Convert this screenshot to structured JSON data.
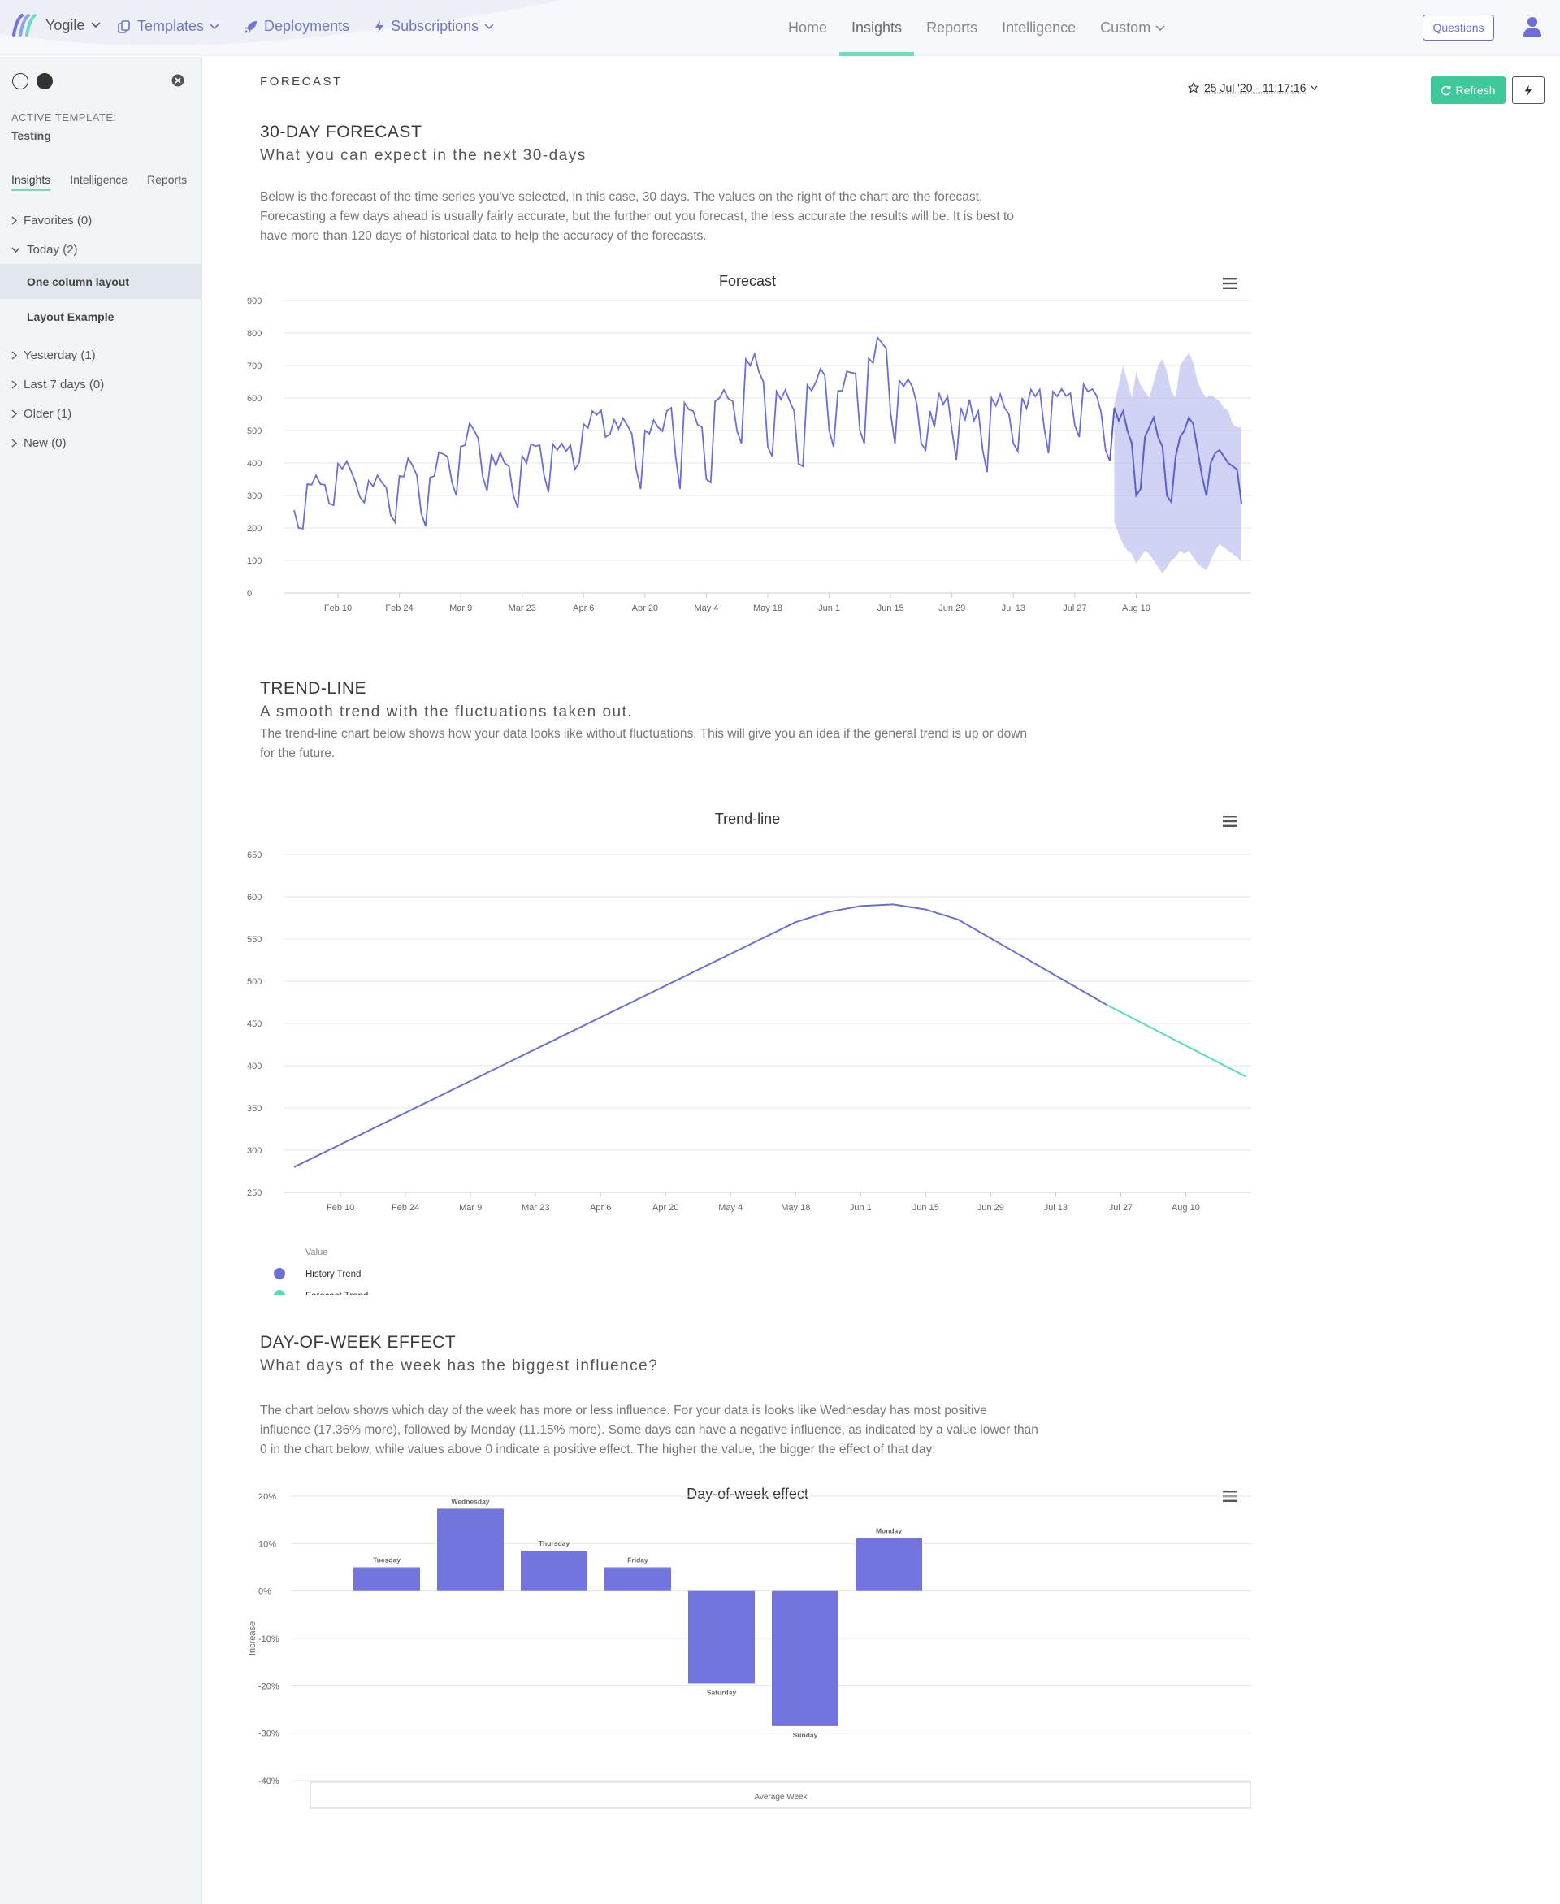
{
  "app": {
    "brand": "Yogile",
    "nav_left": [
      {
        "label": "Templates",
        "icon": "templates-icon"
      },
      {
        "label": "Deployments",
        "icon": "rocket-icon"
      },
      {
        "label": "Subscriptions",
        "icon": "bolt-icon"
      }
    ],
    "nav_center": [
      {
        "label": "Home",
        "active": false
      },
      {
        "label": "Insights",
        "active": true
      },
      {
        "label": "Reports",
        "active": false
      },
      {
        "label": "Intelligence",
        "active": false
      },
      {
        "label": "Custom",
        "active": false
      }
    ],
    "questions_label": "Questions",
    "accent": "#6fdcc0",
    "primary": "#6b6ed6"
  },
  "sidebar": {
    "active_template_label": "ACTIVE TEMPLATE:",
    "active_template_value": "Testing",
    "tabs": [
      "Insights",
      "Intelligence",
      "Reports"
    ],
    "tree": [
      {
        "label": "Favorites (0)",
        "expanded": false,
        "children": []
      },
      {
        "label": "Today (2)",
        "expanded": true,
        "children": [
          {
            "label": "One column layout",
            "selected": true
          },
          {
            "label": "Layout Example",
            "selected": false
          }
        ]
      },
      {
        "label": "Yesterday (1)",
        "expanded": false,
        "children": []
      },
      {
        "label": "Last 7 days (0)",
        "expanded": false,
        "children": []
      },
      {
        "label": "Older (1)",
        "expanded": false,
        "children": []
      },
      {
        "label": "New (0)",
        "expanded": false,
        "children": []
      }
    ]
  },
  "page": {
    "crumb": "FORECAST",
    "date": "25 Jul '20 - 11:17:16",
    "refresh_label": "Refresh"
  },
  "sections": {
    "forecast": {
      "title": "30-DAY FORECAST",
      "subtitle": "What you can expect in the next 30-days",
      "desc_lines": [
        "Below is the forecast of the time series you've selected, in this case, 30 days. The values on the right of the chart are the forecast.",
        "Forecasting a few days ahead is usually fairly accurate, but the further out you forecast, the less accurate the results will be. It is best to",
        "have more than 120 days of historical data to help the accuracy of the forecasts."
      ]
    },
    "trend": {
      "title": "TREND-LINE",
      "subtitle": "A smooth trend with the fluctuations taken out.",
      "desc_lines": [
        "The trend-line chart below shows how your data looks like without fluctuations. This will give you an idea if the general trend is up or down",
        "for the future."
      ]
    },
    "dow": {
      "title": "DAY-OF-WEEK EFFECT",
      "subtitle": "What days of the week has the biggest influence?",
      "desc_lines": [
        "The chart below shows which day of the week has more or less influence. For your data is looks like Wednesday has most positive",
        "influence (17.36% more), followed by Monday (11.15% more). Some days can have a negative influence, as indicated by a value lower than",
        "0 in the chart below, while values above 0 indicate a positive effect. The higher the value, the bigger the effect of that day:"
      ]
    }
  },
  "chart_data": [
    {
      "type": "line",
      "title": "Forecast",
      "x_ticks": [
        "Feb 10",
        "Feb 24",
        "Mar 9",
        "Mar 23",
        "Apr 6",
        "Apr 20",
        "May 4",
        "May 18",
        "Jun 1",
        "Jun 15",
        "Jun 29",
        "Jul 13",
        "Jul 27",
        "Aug 10"
      ],
      "y_ticks": [
        "900",
        "800",
        "700",
        "600",
        "500",
        "400",
        "300",
        "200",
        "100",
        "0"
      ],
      "ylim": [
        0,
        900
      ],
      "x_start": "2020-01-31",
      "series": [
        {
          "values": [
            255,
            200,
            198,
            335,
            333,
            362,
            335,
            333,
            275,
            270,
            398,
            382,
            405,
            375,
            340,
            295,
            278,
            345,
            328,
            362,
            340,
            325,
            240,
            218,
            360,
            358,
            415,
            392,
            362,
            245,
            205,
            355,
            360,
            433,
            428,
            420,
            340,
            300,
            450,
            455,
            522,
            502,
            475,
            358,
            315,
            428,
            392,
            432,
            400,
            390,
            300,
            262,
            422,
            400,
            458,
            452,
            455,
            362,
            310,
            458,
            440,
            460,
            436,
            455,
            380,
            402,
            520,
            508,
            560,
            548,
            562,
            480,
            488,
            533,
            505,
            538,
            515,
            490,
            380,
            320,
            500,
            490,
            532,
            510,
            498,
            560,
            570,
            420,
            320,
            585,
            565,
            560,
            518,
            510,
            350,
            340,
            590,
            600,
            625,
            598,
            590,
            498,
            460,
            720,
            700,
            735,
            680,
            650,
            450,
            420,
            620,
            596,
            625,
            590,
            560,
            398,
            390,
            640,
            622,
            650,
            690,
            670,
            500,
            450,
            622,
            622,
            682,
            678,
            676,
            500,
            460,
            722,
            708,
            786,
            770,
            752,
            555,
            460,
            654,
            636,
            658,
            634,
            580,
            460,
            440,
            560,
            510,
            616,
            580,
            605,
            500,
            410,
            570,
            534,
            595,
            530,
            560,
            440,
            372,
            600,
            576,
            612,
            570,
            550,
            460,
            436,
            600,
            568,
            626,
            605,
            626,
            510,
            430,
            620,
            605,
            628,
            606,
            615,
            516,
            480,
            642,
            620,
            628,
            606,
            555,
            440,
            406
          ]
        },
        {
          "values": [
            570,
            530,
            560,
            500,
            460,
            300,
            320,
            480,
            510,
            540,
            480,
            450,
            300,
            280,
            420,
            480,
            500,
            540,
            520,
            440,
            360,
            300,
            400,
            430,
            440,
            420,
            400,
            390,
            380,
            275
          ]
        }
      ],
      "forecast_band": {
        "upper": [
          580,
          640,
          700,
          650,
          600,
          680,
          640,
          620,
          600,
          650,
          700,
          720,
          680,
          620,
          600,
          700,
          720,
          740,
          710,
          650,
          620,
          600,
          610,
          600,
          590,
          570,
          560,
          520,
          510,
          510
        ],
        "lower": [
          220,
          180,
          150,
          130,
          120,
          90,
          110,
          130,
          120,
          100,
          80,
          60,
          80,
          100,
          110,
          130,
          120,
          130,
          110,
          90,
          80,
          70,
          100,
          130,
          150,
          140,
          130,
          120,
          110,
          95
        ]
      }
    },
    {
      "type": "line",
      "title": "Trend-line",
      "x_ticks": [
        "Feb 10",
        "Feb 24",
        "Mar 9",
        "Mar 23",
        "Apr 6",
        "Apr 20",
        "May 4",
        "May 18",
        "Jun 1",
        "Jun 15",
        "Jun 29",
        "Jul 13",
        "Jul 27",
        "Aug 10"
      ],
      "y_ticks": [
        "650",
        "600",
        "550",
        "500",
        "450",
        "400",
        "350",
        "300",
        "250"
      ],
      "ylim": [
        250,
        650
      ],
      "legend_title": "Value",
      "series": [
        {
          "name": "History Trend",
          "color": "#6b6ed6",
          "points": [
            [
              "2020-01-31",
              280
            ],
            [
              "2020-05-18",
              570
            ],
            [
              "2020-05-25",
              582
            ],
            [
              "2020-06-01",
              589
            ],
            [
              "2020-06-08",
              591
            ],
            [
              "2020-06-15",
              585
            ],
            [
              "2020-06-22",
              573
            ],
            [
              "2020-07-24",
              472
            ]
          ]
        },
        {
          "name": "Forecast Trend",
          "color": "#57dcc2",
          "points": [
            [
              "2020-07-24",
              472
            ],
            [
              "2020-08-23",
              387
            ]
          ]
        }
      ]
    },
    {
      "type": "bar",
      "title": "Day-of-week effect",
      "ylabel": "Increase",
      "xlabel": "Average Week",
      "y_ticks": [
        "20%",
        "10%",
        "0%",
        "-10%",
        "-20%",
        "-30%",
        "-40%"
      ],
      "ylim": [
        -40,
        20
      ],
      "categories": [
        "Tuesday",
        "Wednesday",
        "Thursday",
        "Friday",
        "Saturday",
        "Sunday",
        "Monday"
      ],
      "values": [
        5,
        17.36,
        8.5,
        5,
        -19.5,
        -28.5,
        11.15
      ],
      "color": "#7275dd"
    }
  ]
}
